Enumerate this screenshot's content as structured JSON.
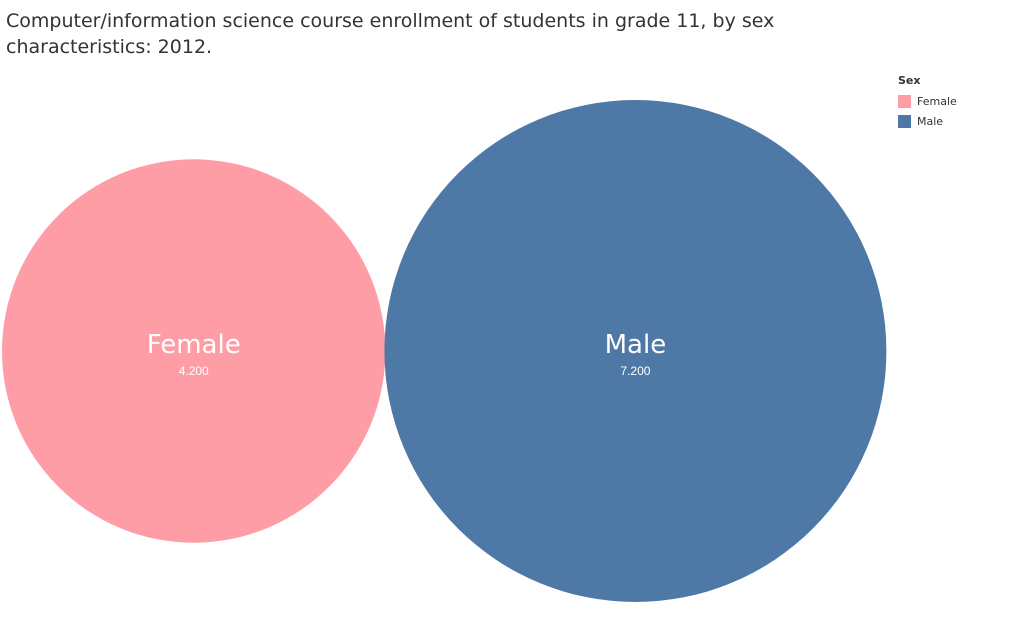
{
  "chart_title": "Computer/information science course enrollment of students in grade 11, by  sex characteristics: 2012.",
  "legend": {
    "title": "Sex",
    "items": [
      {
        "label": "Female",
        "color": "#ff9da7"
      },
      {
        "label": "Male",
        "color": "#4e79a7"
      }
    ]
  },
  "chart_data": {
    "type": "bubble",
    "title": "Computer/information science course enrollment of students in grade 11, by  sex characteristics: 2012.",
    "legend_title": "Sex",
    "legend_position": "top-right",
    "categories": [
      "Female",
      "Male"
    ],
    "values": [
      4.2,
      7.2
    ],
    "value_labels": [
      "4.200",
      "7.200"
    ],
    "colors": [
      "#ff9da7",
      "#4e79a7"
    ],
    "label_color": "#ffffff",
    "grid": false
  }
}
